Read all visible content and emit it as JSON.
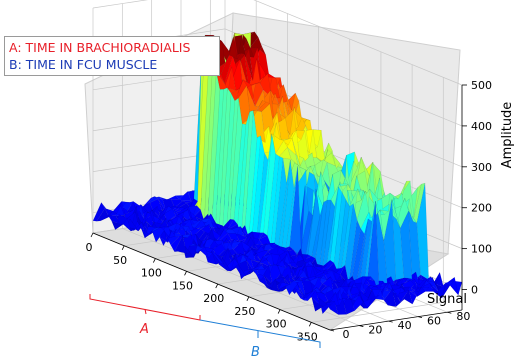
{
  "chart_data": {
    "type": "surface",
    "title": "",
    "xlabel": "",
    "ylabel": "Signal",
    "zlabel": "Amplitude",
    "x_ticks": [
      "0",
      "50",
      "100",
      "150",
      "200",
      "250",
      "300",
      "350"
    ],
    "y_ticks": [
      "0",
      "20",
      "40",
      "60",
      "80"
    ],
    "z_ticks": [
      "0",
      "100",
      "200",
      "300",
      "400",
      "500"
    ],
    "x_range": [
      0,
      380
    ],
    "y_range": [
      0,
      90
    ],
    "z_range": [
      -50,
      500
    ],
    "colormap": "jet",
    "grid": true,
    "regions": [
      {
        "name": "A",
        "x_range": [
          0,
          200
        ],
        "color": "#e8202a"
      },
      {
        "name": "B",
        "x_range": [
          200,
          380
        ],
        "color": "#1f7fd6"
      }
    ],
    "series": [
      {
        "name": "A",
        "x_range": [
          0,
          200
        ],
        "peak_amplitude": 400,
        "typical_amplitude": 200
      },
      {
        "name": "B",
        "x_range": [
          200,
          380
        ],
        "peak_amplitude": 270,
        "typical_amplitude": 150
      }
    ],
    "legend": {
      "placement": "top-left",
      "entries": [
        {
          "key": "A",
          "label": "A: TIME IN BRACHIORADIALIS",
          "color": "#e8202a"
        },
        {
          "key": "B",
          "label": "B: TIME IN FCU MUSCLE",
          "color": "#1c3bb5"
        }
      ]
    }
  }
}
